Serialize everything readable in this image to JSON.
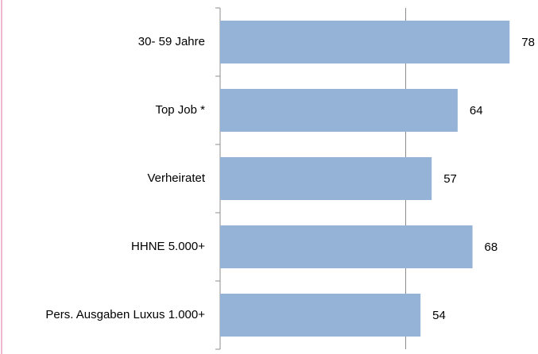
{
  "chart_data": {
    "type": "barh",
    "categories": [
      "30- 59 Jahre",
      "Top Job *",
      "Verheiratet",
      "HHNE 5.000+",
      "Pers. Ausgaben Luxus 1.000+"
    ],
    "values": [
      78,
      64,
      57,
      68,
      54
    ],
    "color": "#95b3d7",
    "xlim": [
      0,
      100
    ],
    "xticks": [
      0,
      50
    ],
    "tick_labels": false,
    "grid": true
  }
}
